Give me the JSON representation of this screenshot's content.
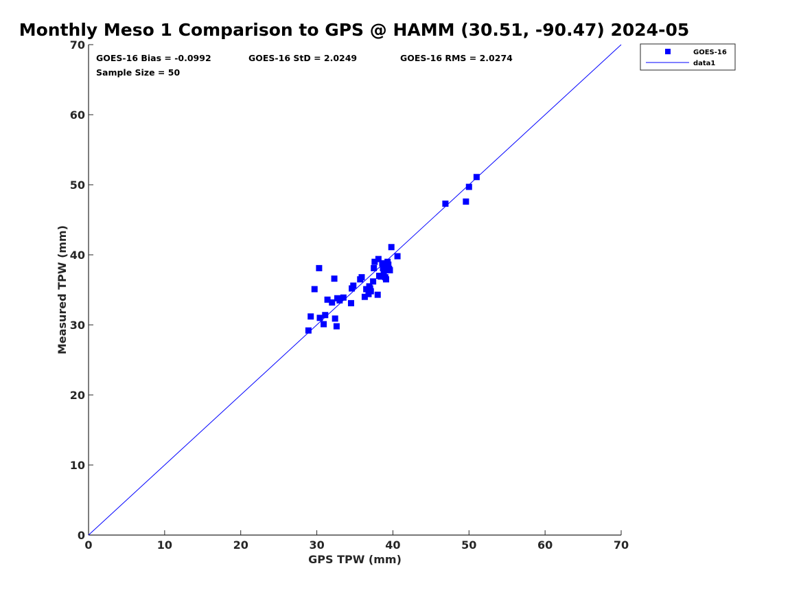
{
  "chart_data": {
    "type": "scatter",
    "title": "Monthly Meso 1 Comparison to GPS @ HAMM (30.51, -90.47) 2024-05",
    "xlabel": "GPS TPW (mm)",
    "ylabel": "Measured TPW (mm)",
    "xlim": [
      0,
      70
    ],
    "ylim": [
      0,
      70
    ],
    "xticks": [
      "0",
      "10",
      "20",
      "30",
      "40",
      "50",
      "60",
      "70"
    ],
    "yticks": [
      "0",
      "10",
      "20",
      "30",
      "40",
      "50",
      "60",
      "70"
    ],
    "grid": false,
    "legend_position": "top-right outside",
    "stats": {
      "bias": "GOES-16 Bias = -0.0992",
      "std": "GOES-16 StD = 2.0249",
      "rms": "GOES-16 RMS = 2.0274",
      "sample_size": "Sample Size = 50"
    },
    "series": [
      {
        "name": "GOES-16",
        "kind": "scatter",
        "marker": "square",
        "color": "#0000ff",
        "points": [
          [
            28.9,
            29.2
          ],
          [
            29.2,
            31.2
          ],
          [
            29.7,
            35.1
          ],
          [
            30.3,
            38.1
          ],
          [
            30.4,
            31.0
          ],
          [
            30.9,
            30.1
          ],
          [
            31.1,
            31.4
          ],
          [
            31.4,
            33.6
          ],
          [
            32.0,
            33.2
          ],
          [
            32.3,
            36.6
          ],
          [
            32.4,
            30.9
          ],
          [
            32.6,
            29.8
          ],
          [
            32.7,
            33.8
          ],
          [
            33.0,
            33.5
          ],
          [
            33.5,
            33.9
          ],
          [
            34.5,
            33.1
          ],
          [
            34.6,
            35.2
          ],
          [
            34.8,
            35.6
          ],
          [
            35.7,
            36.5
          ],
          [
            35.9,
            36.8
          ],
          [
            36.3,
            34.0
          ],
          [
            36.5,
            35.1
          ],
          [
            36.8,
            34.4
          ],
          [
            36.9,
            35.5
          ],
          [
            37.1,
            34.8
          ],
          [
            37.4,
            36.2
          ],
          [
            37.5,
            38.1
          ],
          [
            37.6,
            39.0
          ],
          [
            38.0,
            34.3
          ],
          [
            38.1,
            39.4
          ],
          [
            38.2,
            37.0
          ],
          [
            38.4,
            36.9
          ],
          [
            38.6,
            38.8
          ],
          [
            38.8,
            37.5
          ],
          [
            38.9,
            37.9
          ],
          [
            39.0,
            36.8
          ],
          [
            39.1,
            36.5
          ],
          [
            39.2,
            38.4
          ],
          [
            39.3,
            39.0
          ],
          [
            39.5,
            38.0
          ],
          [
            39.6,
            37.8
          ],
          [
            39.8,
            41.1
          ],
          [
            40.6,
            39.8
          ],
          [
            46.9,
            47.3
          ],
          [
            49.6,
            47.6
          ],
          [
            50.0,
            49.7
          ],
          [
            51.0,
            51.1
          ],
          [
            38.7,
            38.1
          ],
          [
            37.0,
            35.2
          ],
          [
            39.4,
            38.6
          ]
        ]
      },
      {
        "name": "data1",
        "kind": "line",
        "color": "#0000ff",
        "points": [
          [
            0,
            0
          ],
          [
            70,
            70
          ]
        ]
      }
    ]
  }
}
